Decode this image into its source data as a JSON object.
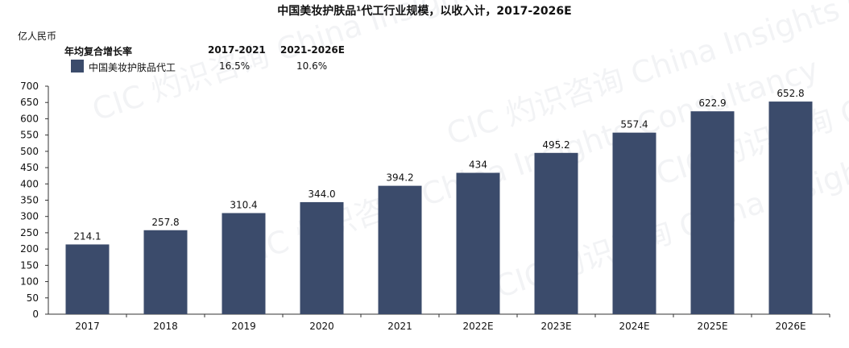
{
  "title": "中国美妆护肤品¹代工行业规模，以收入计，2017-2026E",
  "unit": "亿人民币",
  "cagr_table": {
    "header": "年均复合增长率",
    "periods": [
      "2017-2021",
      "2021-2026E"
    ],
    "values": [
      "16.5%",
      "10.6%"
    ]
  },
  "watermark": "CIC 灼识咨询 China Insights Consultancy",
  "colors": {
    "bar": "#3b4b6b"
  },
  "chart_data": {
    "type": "bar",
    "categories": [
      "2017",
      "2018",
      "2019",
      "2020",
      "2021",
      "2022E",
      "2023E",
      "2024E",
      "2025E",
      "2026E"
    ],
    "series": [
      {
        "name": "中国美妆护肤品代工",
        "values": [
          214.1,
          257.8,
          310.4,
          344.0,
          394.2,
          434,
          495.2,
          557.4,
          622.9,
          652.8
        ]
      }
    ],
    "data_labels": [
      "214.1",
      "257.8",
      "310.4",
      "344.0",
      "394.2",
      "434",
      "495.2",
      "557.4",
      "622.9",
      "652.8"
    ],
    "ylim": [
      0,
      700
    ],
    "yticks": [
      0,
      50,
      100,
      150,
      200,
      250,
      300,
      350,
      400,
      450,
      500,
      550,
      600,
      650,
      700
    ],
    "grid": false,
    "legend_position": "top-left"
  }
}
